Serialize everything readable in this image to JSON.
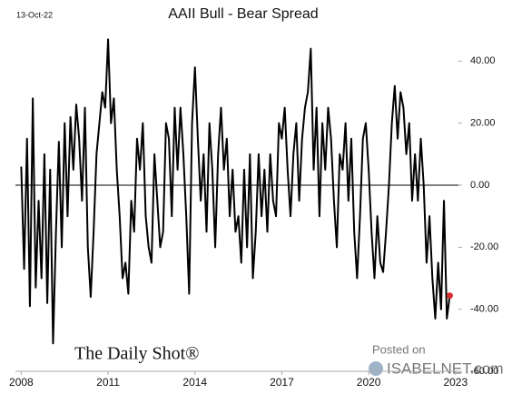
{
  "chart_data": {
    "type": "line",
    "title": "AAII Bull - Bear Spread",
    "date_label": "13-Oct-22",
    "source": "The Daily Shot®",
    "posted_on": "Posted on",
    "site": "ISABELNET.com",
    "color": "#000000",
    "last_point_color": "#d62f2f",
    "zero_line": true,
    "x": [
      2008.0,
      2008.1,
      2008.2,
      2008.3,
      2008.4,
      2008.5,
      2008.6,
      2008.7,
      2008.8,
      2008.9,
      2009.0,
      2009.1,
      2009.2,
      2009.3,
      2009.4,
      2009.5,
      2009.6,
      2009.7,
      2009.8,
      2009.9,
      2010.0,
      2010.1,
      2010.2,
      2010.3,
      2010.4,
      2010.5,
      2010.6,
      2010.7,
      2010.8,
      2010.9,
      2011.0,
      2011.1,
      2011.2,
      2011.3,
      2011.4,
      2011.5,
      2011.6,
      2011.7,
      2011.8,
      2011.9,
      2012.0,
      2012.1,
      2012.2,
      2012.3,
      2012.4,
      2012.5,
      2012.6,
      2012.7,
      2012.8,
      2012.9,
      2013.0,
      2013.1,
      2013.2,
      2013.3,
      2013.4,
      2013.5,
      2013.6,
      2013.7,
      2013.8,
      2013.9,
      2014.0,
      2014.1,
      2014.2,
      2014.3,
      2014.4,
      2014.5,
      2014.6,
      2014.7,
      2014.8,
      2014.9,
      2015.0,
      2015.1,
      2015.2,
      2015.3,
      2015.4,
      2015.5,
      2015.6,
      2015.7,
      2015.8,
      2015.9,
      2016.0,
      2016.1,
      2016.2,
      2016.3,
      2016.4,
      2016.5,
      2016.6,
      2016.7,
      2016.8,
      2016.9,
      2017.0,
      2017.1,
      2017.2,
      2017.3,
      2017.4,
      2017.5,
      2017.6,
      2017.7,
      2017.8,
      2017.9,
      2018.0,
      2018.1,
      2018.2,
      2018.3,
      2018.4,
      2018.5,
      2018.6,
      2018.7,
      2018.8,
      2018.9,
      2019.0,
      2019.1,
      2019.2,
      2019.3,
      2019.4,
      2019.5,
      2019.6,
      2019.7,
      2019.8,
      2019.9,
      2020.0,
      2020.1,
      2020.2,
      2020.3,
      2020.4,
      2020.5,
      2020.6,
      2020.7,
      2020.8,
      2020.9,
      2021.0,
      2021.1,
      2021.2,
      2021.3,
      2021.4,
      2021.5,
      2021.6,
      2021.7,
      2021.8,
      2021.9,
      2022.0,
      2022.1,
      2022.2,
      2022.3,
      2022.4,
      2022.5,
      2022.6,
      2022.7,
      2022.8
    ],
    "values": [
      6,
      -27,
      15,
      -39,
      28,
      -33,
      -5,
      -30,
      10,
      -38,
      5,
      -51,
      -15,
      14,
      -20,
      20,
      -10,
      22,
      5,
      26,
      15,
      -5,
      25,
      -20,
      -36,
      -15,
      10,
      20,
      30,
      25,
      47,
      20,
      28,
      5,
      -10,
      -30,
      -25,
      -35,
      -5,
      -15,
      15,
      5,
      20,
      -10,
      -20,
      -25,
      10,
      -5,
      -20,
      -15,
      20,
      15,
      -10,
      25,
      5,
      25,
      10,
      -10,
      -35,
      20,
      38,
      15,
      -5,
      10,
      -15,
      20,
      5,
      -20,
      10,
      25,
      5,
      15,
      -10,
      5,
      -15,
      -10,
      -25,
      5,
      -20,
      10,
      -30,
      -15,
      10,
      -10,
      5,
      -15,
      10,
      -5,
      -10,
      20,
      15,
      25,
      5,
      -10,
      10,
      20,
      -5,
      15,
      25,
      30,
      44,
      5,
      25,
      -10,
      20,
      5,
      25,
      15,
      -5,
      -20,
      10,
      5,
      20,
      -5,
      15,
      -15,
      -30,
      -10,
      15,
      20,
      5,
      -15,
      -30,
      -10,
      -25,
      -28,
      -15,
      0,
      20,
      32,
      15,
      30,
      25,
      10,
      20,
      -5,
      10,
      -5,
      15,
      0,
      -25,
      -10,
      -30,
      -43,
      -25,
      -40,
      -5,
      -43,
      -35.6
    ],
    "xlim": [
      2007.8,
      2023.1
    ],
    "xticks": [
      2008,
      2011,
      2014,
      2017,
      2020,
      2023
    ],
    "ylim": [
      -60,
      48
    ],
    "yticks": [
      {
        "value": 40,
        "label": "40.00"
      },
      {
        "value": 20,
        "label": "20.00"
      },
      {
        "value": 0,
        "label": "0.00"
      },
      {
        "value": -20,
        "label": "-20.00"
      },
      {
        "value": -40,
        "label": "-40.00"
      },
      {
        "value": -60,
        "label": "-60.00"
      }
    ]
  }
}
